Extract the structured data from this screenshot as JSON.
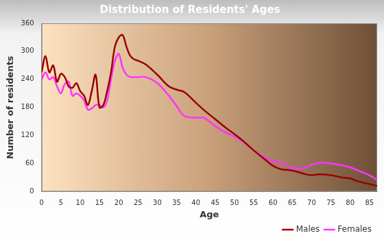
{
  "chart_data": {
    "type": "line",
    "title": "Distribution of Residents' Ages",
    "x_label": "Age",
    "y_label": "Number of residents",
    "x": [
      0,
      1,
      2,
      3,
      4,
      5,
      6,
      7,
      8,
      9,
      10,
      11,
      12,
      13,
      14,
      15,
      16,
      17,
      18,
      19,
      20,
      21,
      22,
      23,
      24,
      25,
      27,
      30,
      33,
      35,
      37,
      40,
      42,
      45,
      48,
      50,
      52,
      55,
      58,
      60,
      62,
      65,
      68,
      70,
      72,
      75,
      78,
      80,
      82,
      85,
      87
    ],
    "series": [
      {
        "name": "Males",
        "color": "#990000",
        "values": [
          255,
          290,
          255,
          270,
          235,
          252,
          245,
          225,
          222,
          232,
          215,
          205,
          185,
          215,
          250,
          180,
          185,
          215,
          255,
          310,
          330,
          335,
          310,
          290,
          283,
          280,
          272,
          250,
          225,
          218,
          213,
          190,
          175,
          155,
          135,
          123,
          110,
          88,
          68,
          55,
          48,
          45,
          38,
          35,
          37,
          35,
          30,
          28,
          22,
          16,
          12
        ]
      },
      {
        "name": "Females",
        "color": "#ff33ff",
        "values": [
          240,
          255,
          240,
          245,
          225,
          210,
          230,
          235,
          205,
          210,
          205,
          195,
          175,
          178,
          185,
          185,
          180,
          195,
          240,
          280,
          295,
          265,
          250,
          245,
          245,
          245,
          245,
          232,
          205,
          183,
          162,
          158,
          158,
          140,
          125,
          118,
          108,
          88,
          72,
          65,
          63,
          50,
          50,
          57,
          62,
          60,
          56,
          52,
          45,
          35,
          25
        ]
      }
    ],
    "xlim": [
      0,
      87
    ],
    "xticks": [
      0,
      5,
      10,
      15,
      20,
      25,
      30,
      35,
      40,
      45,
      50,
      55,
      60,
      65,
      70,
      75,
      80,
      85
    ],
    "ylim": [
      0,
      360
    ],
    "yticks": [
      0,
      60,
      120,
      180,
      240,
      300,
      360
    ],
    "grid": false,
    "legend": "bottom-right"
  }
}
